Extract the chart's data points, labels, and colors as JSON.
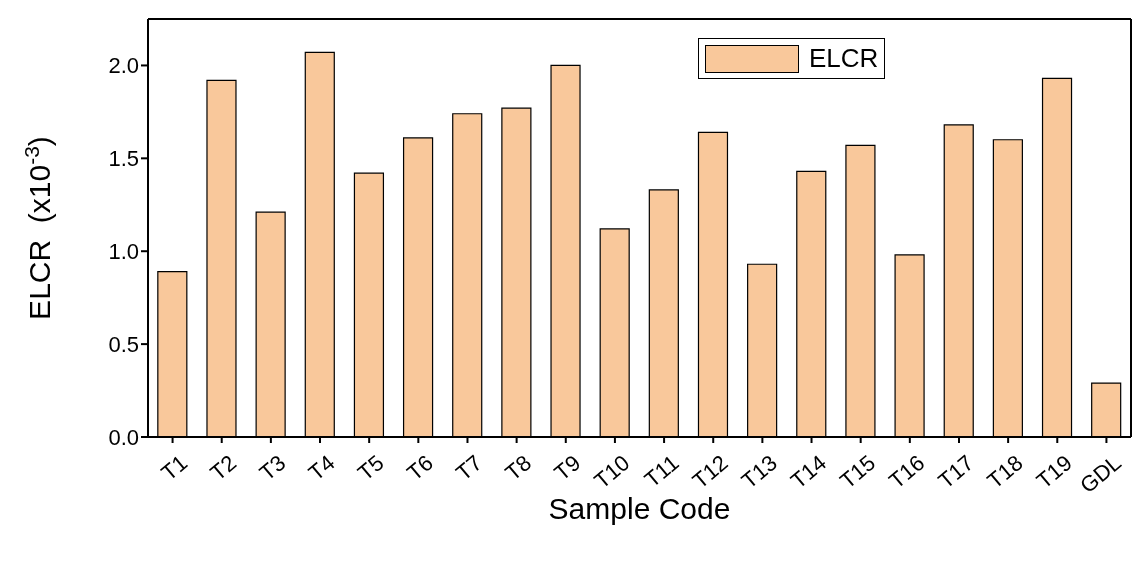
{
  "chart_data": {
    "type": "bar",
    "xlabel": "Sample Code",
    "ylabel": "ELCR  (x10$^{-3}$)",
    "categories": [
      "T1",
      "T2",
      "T3",
      "T4",
      "T5",
      "T6",
      "T7",
      "T8",
      "T9",
      "T10",
      "T11",
      "T12",
      "T13",
      "T14",
      "T15",
      "T16",
      "T17",
      "T18",
      "T19",
      "GDL"
    ],
    "series": [
      {
        "name": "ELCR",
        "color": "#f9c89b",
        "values": [
          0.89,
          1.92,
          1.21,
          2.07,
          1.42,
          1.61,
          1.74,
          1.77,
          2.0,
          1.12,
          1.33,
          1.64,
          0.93,
          1.43,
          1.57,
          0.98,
          1.68,
          1.6,
          1.93,
          0.29
        ]
      }
    ],
    "ylim": [
      0,
      2.25
    ],
    "yticks": [
      {
        "value": 0,
        "label": "0.0"
      },
      {
        "value": 0.5,
        "label": "0.5"
      },
      {
        "value": 1,
        "label": "1.0"
      },
      {
        "value": 1.5,
        "label": "1.5"
      },
      {
        "value": 2,
        "label": "2.0"
      }
    ],
    "legend": "top right",
    "grid": false
  }
}
